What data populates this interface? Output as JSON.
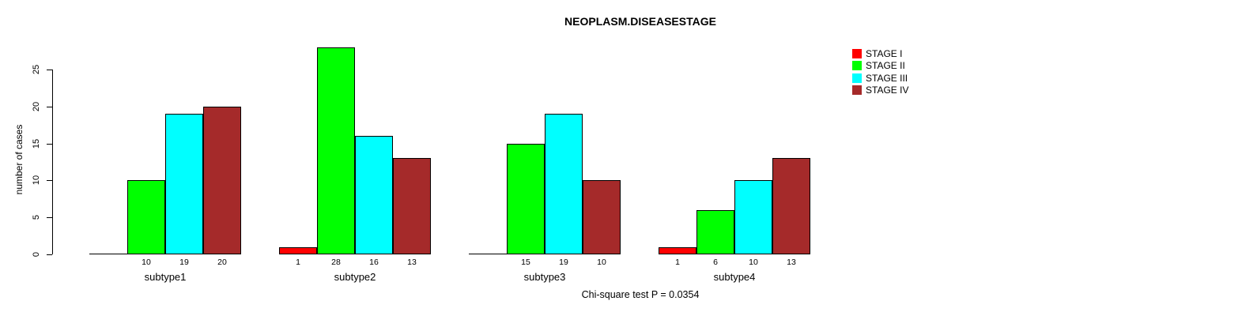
{
  "chart_data": {
    "type": "bar",
    "title": "NEOPLASM.DISEASESTAGE",
    "ylabel": "number of cases",
    "xlabel": "",
    "annotation": "Chi-square test P = 0.0354",
    "categories": [
      "subtype1",
      "subtype2",
      "subtype3",
      "subtype4"
    ],
    "series": [
      {
        "name": "STAGE I",
        "color": "#FF0000",
        "values": [
          0,
          1,
          0,
          1
        ]
      },
      {
        "name": "STAGE II",
        "color": "#00FF00",
        "values": [
          10,
          28,
          15,
          6
        ]
      },
      {
        "name": "STAGE III",
        "color": "#00FFFF",
        "values": [
          19,
          16,
          19,
          10
        ]
      },
      {
        "name": "STAGE IV",
        "color": "#A52A2A",
        "values": [
          20,
          13,
          10,
          13
        ]
      }
    ],
    "yticks": [
      0,
      5,
      10,
      15,
      20,
      25
    ],
    "ylim": [
      0,
      28
    ],
    "bar_value_labels": "shown under each bar, hidden when value is 0",
    "legend_position": "top-right",
    "grid": false,
    "bar_border_color": "#000000",
    "background_color": "#FFFFFF"
  }
}
